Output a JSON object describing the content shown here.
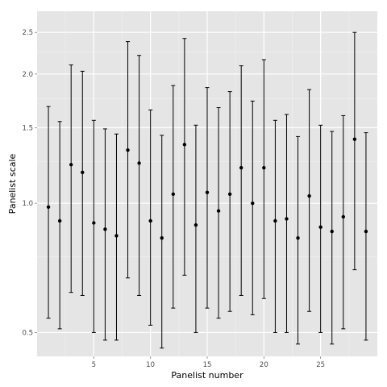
{
  "chart_data": {
    "type": "scatter",
    "title": "",
    "xlabel": "Panelist number",
    "ylabel": "Panelist scale",
    "x_scale": "linear",
    "y_scale": "log",
    "xlim": [
      0,
      30
    ],
    "ylim": [
      0.44,
      2.8
    ],
    "x_ticks": [
      5,
      10,
      15,
      20,
      25
    ],
    "y_ticks": [
      0.5,
      1.0,
      1.5,
      2.0,
      2.5
    ],
    "x_tick_labels": [
      "5",
      "10",
      "15",
      "20",
      "25"
    ],
    "y_tick_labels": [
      "0.5",
      "1.0",
      "1.5",
      "2.0",
      "2.5"
    ],
    "grid": true,
    "legend": "none",
    "series": [
      {
        "x": [
          1,
          2,
          3,
          4,
          5,
          6,
          7,
          8,
          9,
          10,
          11,
          12,
          13,
          14,
          15,
          16,
          17,
          18,
          19,
          20,
          21,
          22,
          23,
          24,
          25,
          26,
          27,
          28,
          29
        ],
        "y": [
          0.98,
          0.91,
          1.23,
          1.18,
          0.9,
          0.87,
          0.84,
          1.33,
          1.24,
          0.91,
          0.83,
          1.05,
          1.37,
          0.89,
          1.06,
          0.96,
          1.05,
          1.21,
          1.0,
          1.21,
          0.91,
          0.92,
          0.83,
          1.04,
          0.88,
          0.86,
          0.93,
          1.41,
          0.86
        ],
        "lower": [
          0.54,
          0.51,
          0.62,
          0.61,
          0.5,
          0.48,
          0.48,
          0.67,
          0.61,
          0.52,
          0.46,
          0.57,
          0.68,
          0.5,
          0.57,
          0.54,
          0.56,
          0.61,
          0.55,
          0.6,
          0.5,
          0.5,
          0.47,
          0.56,
          0.5,
          0.47,
          0.51,
          0.7,
          0.48
        ],
        "upper": [
          1.68,
          1.55,
          2.1,
          2.03,
          1.56,
          1.49,
          1.45,
          2.38,
          2.21,
          1.65,
          1.44,
          1.88,
          2.42,
          1.52,
          1.86,
          1.67,
          1.82,
          2.09,
          1.73,
          2.16,
          1.56,
          1.61,
          1.43,
          1.84,
          1.52,
          1.47,
          1.6,
          2.5,
          1.46
        ]
      }
    ]
  },
  "colors": {
    "panel_background": "#e5e5e5",
    "grid_major": "#ffffff",
    "grid_minor": "#f2f2f2",
    "points": "#000000",
    "error_bars": "#000000",
    "tick_text": "#4d4d4d",
    "axis_title": "#000000"
  }
}
